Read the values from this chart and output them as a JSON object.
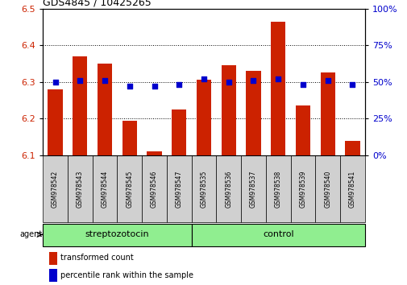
{
  "title": "GDS4845 / 10425265",
  "samples": [
    "GSM978542",
    "GSM978543",
    "GSM978544",
    "GSM978545",
    "GSM978546",
    "GSM978547",
    "GSM978535",
    "GSM978536",
    "GSM978537",
    "GSM978538",
    "GSM978539",
    "GSM978540",
    "GSM978541"
  ],
  "red_values": [
    6.28,
    6.37,
    6.35,
    6.195,
    6.11,
    6.225,
    6.305,
    6.345,
    6.33,
    6.465,
    6.235,
    6.325,
    6.14
  ],
  "blue_values": [
    50,
    51,
    51,
    47,
    47,
    48,
    52,
    50,
    51,
    52,
    48,
    51,
    48
  ],
  "ylim_left": [
    6.1,
    6.5
  ],
  "ylim_right": [
    0,
    100
  ],
  "yticks_left": [
    6.1,
    6.2,
    6.3,
    6.4,
    6.5
  ],
  "yticks_right": [
    0,
    25,
    50,
    75,
    100
  ],
  "bar_color": "#cc2200",
  "dot_color": "#0000cc",
  "tick_bg_color": "#d0d0d0",
  "group_bg_color": "#90ee90",
  "grid_color": "#000000",
  "agent_label": "agent",
  "legend_red": "transformed count",
  "legend_blue": "percentile rank within the sample",
  "bar_bottom": 6.1,
  "bar_width": 0.6,
  "dot_size": 18,
  "group_regions": [
    {
      "label": "streptozotocin",
      "start": 0,
      "end": 5
    },
    {
      "label": "control",
      "start": 6,
      "end": 12
    }
  ]
}
